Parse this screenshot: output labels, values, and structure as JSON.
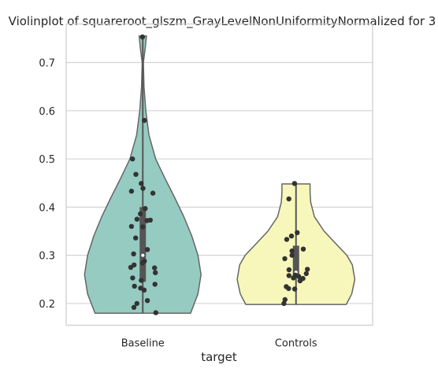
{
  "chart_data": {
    "type": "violin",
    "title": "Violinplot of squareroot_glszm_GrayLevelNonUniformityNormalized for 3",
    "xlabel": "target",
    "ylabel": "",
    "ylim": [
      0.155,
      0.78
    ],
    "yticks": [
      0.2,
      0.3,
      0.4,
      0.5,
      0.6,
      0.7
    ],
    "ytick_labels": [
      "0.2",
      "0.3",
      "0.4",
      "0.5",
      "0.6",
      "0.7"
    ],
    "grid": "horizontal",
    "categories": [
      "Baseline",
      "Controls"
    ],
    "colors": {
      "Baseline": "#96cbc1",
      "Controls": "#f7f7bb",
      "edge": "#666666",
      "points": "#333333",
      "grid": "#d4d4d4"
    },
    "violins": [
      {
        "category": "Baseline",
        "min": 0.18,
        "max": 0.755,
        "q1": 0.245,
        "median": 0.3,
        "q3": 0.4,
        "profile": [
          [
            0.18,
            0.78
          ],
          [
            0.22,
            0.9
          ],
          [
            0.26,
            0.95
          ],
          [
            0.3,
            0.9
          ],
          [
            0.34,
            0.8
          ],
          [
            0.38,
            0.67
          ],
          [
            0.42,
            0.52
          ],
          [
            0.46,
            0.36
          ],
          [
            0.5,
            0.21
          ],
          [
            0.55,
            0.1
          ],
          [
            0.6,
            0.05
          ],
          [
            0.65,
            0.02
          ],
          [
            0.7,
            0.01
          ],
          [
            0.73,
            0.04
          ],
          [
            0.755,
            0.06
          ]
        ],
        "points": [
          0.753,
          0.58,
          0.5,
          0.468,
          0.449,
          0.439,
          0.433,
          0.429,
          0.397,
          0.386,
          0.375,
          0.373,
          0.372,
          0.36,
          0.359,
          0.336,
          0.312,
          0.303,
          0.288,
          0.284,
          0.28,
          0.275,
          0.274,
          0.264,
          0.253,
          0.248,
          0.24,
          0.236,
          0.232,
          0.228,
          0.206,
          0.2,
          0.192,
          0.181
        ]
      },
      {
        "category": "Controls",
        "min": 0.198,
        "max": 0.448,
        "q1": 0.255,
        "median": 0.265,
        "q3": 0.32,
        "profile": [
          [
            0.198,
            0.82
          ],
          [
            0.22,
            0.91
          ],
          [
            0.25,
            0.96
          ],
          [
            0.28,
            0.92
          ],
          [
            0.3,
            0.83
          ],
          [
            0.32,
            0.68
          ],
          [
            0.35,
            0.46
          ],
          [
            0.38,
            0.3
          ],
          [
            0.41,
            0.24
          ],
          [
            0.43,
            0.23
          ],
          [
            0.448,
            0.23
          ]
        ],
        "points": [
          0.449,
          0.417,
          0.347,
          0.34,
          0.333,
          0.313,
          0.309,
          0.3,
          0.293,
          0.271,
          0.27,
          0.262,
          0.259,
          0.258,
          0.256,
          0.253,
          0.252,
          0.247,
          0.235,
          0.231,
          0.23,
          0.208,
          0.2
        ]
      }
    ]
  }
}
